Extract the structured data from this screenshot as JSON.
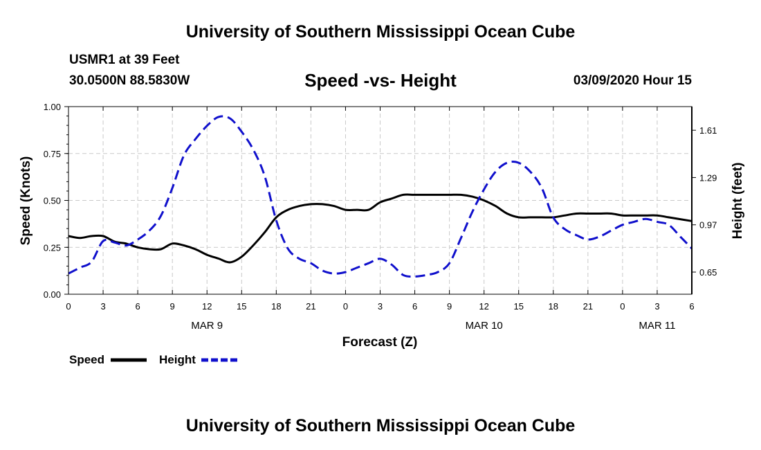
{
  "header": {
    "title": "University of Southern Mississippi Ocean Cube",
    "station": "USMR1 at 39 Feet",
    "coords": "30.0500N 88.5830W",
    "timestamp": "03/09/2020 Hour 15"
  },
  "footer": {
    "title": "University of Southern Mississippi Ocean Cube"
  },
  "chart_data": {
    "type": "line",
    "title": "Speed -vs- Height",
    "xlabel": "Forecast (Z)",
    "ylabel_left": "Speed (Knots)",
    "ylabel_right": "Height (feet)",
    "xlim": [
      0,
      54
    ],
    "ylim_left": [
      0,
      1.0
    ],
    "ylim_right": [
      0.5,
      1.77
    ],
    "grid": true,
    "x_ticks": [
      0,
      3,
      6,
      9,
      12,
      15,
      18,
      21,
      24,
      27,
      30,
      33,
      36,
      39,
      42,
      45,
      48,
      51,
      54
    ],
    "x_tick_labels": [
      "0",
      "3",
      "6",
      "9",
      "12",
      "15",
      "18",
      "21",
      "0",
      "3",
      "6",
      "9",
      "12",
      "15",
      "18",
      "21",
      "0",
      "3",
      "6"
    ],
    "y_left_ticks": [
      0,
      0.25,
      0.5,
      0.75,
      1.0
    ],
    "y_left_tick_labels": [
      "0.00",
      "0.25",
      "0.50",
      "0.75",
      "1.00"
    ],
    "y_right_ticks": [
      0.65,
      0.97,
      1.29,
      1.61
    ],
    "y_right_tick_labels": [
      "0.65",
      "0.97",
      "1.29",
      "1.61"
    ],
    "date_labels": [
      {
        "x": 12,
        "label": "MAR 9"
      },
      {
        "x": 36,
        "label": "MAR 10"
      },
      {
        "x": 51,
        "label": "MAR 11"
      }
    ],
    "series": [
      {
        "name": "Speed",
        "axis": "left",
        "color": "#000000",
        "dash": "solid",
        "x": [
          0,
          1,
          2,
          3,
          4,
          5,
          6,
          7,
          8,
          9,
          10,
          11,
          12,
          13,
          14,
          15,
          16,
          17,
          18,
          19,
          20,
          21,
          22,
          23,
          24,
          25,
          26,
          27,
          28,
          29,
          30,
          31,
          32,
          33,
          34,
          35,
          36,
          37,
          38,
          39,
          40,
          41,
          42,
          43,
          44,
          45,
          46,
          47,
          48,
          49,
          50,
          51,
          52,
          53,
          54
        ],
        "values": [
          0.31,
          0.3,
          0.31,
          0.31,
          0.28,
          0.27,
          0.25,
          0.24,
          0.24,
          0.27,
          0.26,
          0.24,
          0.21,
          0.19,
          0.17,
          0.2,
          0.26,
          0.33,
          0.41,
          0.45,
          0.47,
          0.48,
          0.48,
          0.47,
          0.45,
          0.45,
          0.45,
          0.49,
          0.51,
          0.53,
          0.53,
          0.53,
          0.53,
          0.53,
          0.53,
          0.52,
          0.5,
          0.47,
          0.43,
          0.41,
          0.41,
          0.41,
          0.41,
          0.42,
          0.43,
          0.43,
          0.43,
          0.43,
          0.42,
          0.42,
          0.42,
          0.42,
          0.41,
          0.4,
          0.39
        ]
      },
      {
        "name": "Height",
        "axis": "right",
        "color": "#1010cc",
        "dash": "dashed",
        "x": [
          0,
          1,
          2,
          3,
          4,
          5,
          6,
          7,
          8,
          9,
          10,
          11,
          12,
          13,
          14,
          15,
          16,
          17,
          18,
          19,
          20,
          21,
          22,
          23,
          24,
          25,
          26,
          27,
          28,
          29,
          30,
          31,
          32,
          33,
          34,
          35,
          36,
          37,
          38,
          39,
          40,
          41,
          42,
          43,
          44,
          45,
          46,
          47,
          48,
          49,
          50,
          51,
          52,
          53,
          54
        ],
        "values": [
          0.64,
          0.68,
          0.72,
          0.86,
          0.85,
          0.83,
          0.87,
          0.93,
          1.03,
          1.22,
          1.44,
          1.55,
          1.64,
          1.7,
          1.69,
          1.6,
          1.48,
          1.3,
          1.0,
          0.81,
          0.74,
          0.71,
          0.66,
          0.64,
          0.65,
          0.68,
          0.71,
          0.74,
          0.7,
          0.63,
          0.62,
          0.63,
          0.65,
          0.71,
          0.88,
          1.06,
          1.21,
          1.33,
          1.39,
          1.39,
          1.33,
          1.22,
          1.02,
          0.94,
          0.9,
          0.87,
          0.89,
          0.93,
          0.97,
          0.99,
          1.01,
          0.99,
          0.97,
          0.89,
          0.81
        ]
      }
    ],
    "legend": [
      {
        "label": "Speed",
        "series": "Speed"
      },
      {
        "label": "Height",
        "series": "Height"
      }
    ]
  }
}
